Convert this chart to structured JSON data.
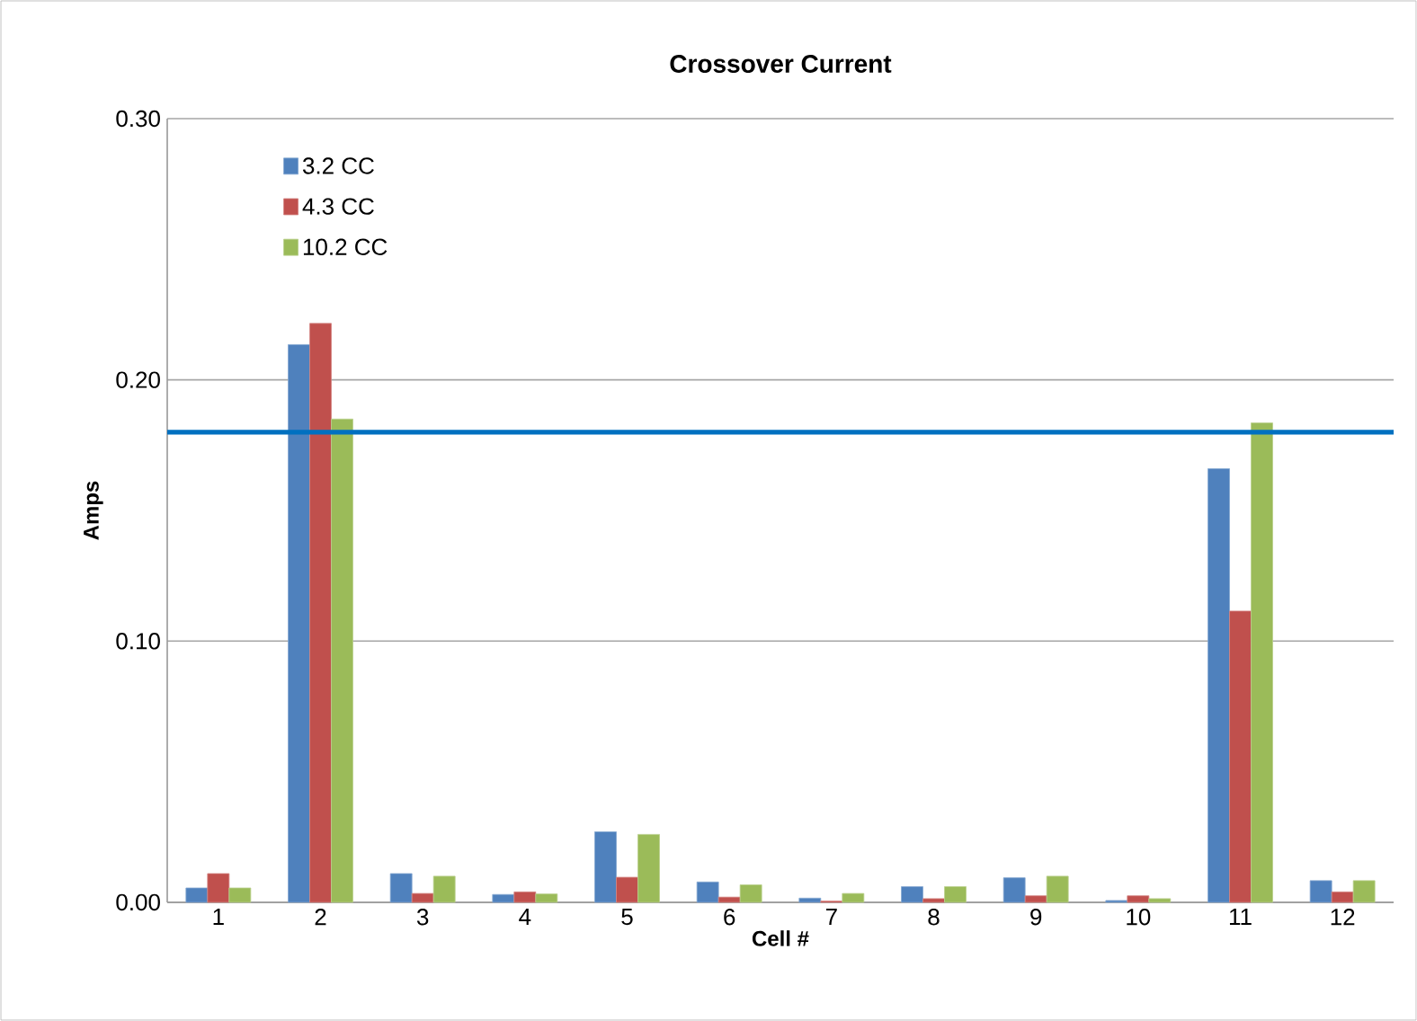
{
  "chart_data": {
    "type": "bar",
    "title": "Crossover Current",
    "xlabel": "Cell #",
    "ylabel": "Amps",
    "categories": [
      "1",
      "2",
      "3",
      "4",
      "5",
      "6",
      "7",
      "8",
      "9",
      "10",
      "11",
      "12"
    ],
    "series": [
      {
        "name": "3.2 CC",
        "color": "#4f81bd",
        "values": [
          0.0055,
          0.2135,
          0.011,
          0.003,
          0.027,
          0.0078,
          0.0016,
          0.006,
          0.0094,
          0.0007,
          0.166,
          0.0083
        ]
      },
      {
        "name": "4.3 CC",
        "color": "#c0504d",
        "values": [
          0.011,
          0.2216,
          0.0034,
          0.004,
          0.0096,
          0.002,
          0.0005,
          0.0014,
          0.0025,
          0.0025,
          0.1115,
          0.004
        ]
      },
      {
        "name": "10.2 CC",
        "color": "#9bbb59",
        "values": [
          0.0055,
          0.185,
          0.01,
          0.0032,
          0.026,
          0.0067,
          0.0034,
          0.006,
          0.01,
          0.0014,
          0.1835,
          0.0083
        ]
      }
    ],
    "ylim": [
      0,
      0.3
    ],
    "yticks": [
      {
        "value": 0,
        "label": "0.00"
      },
      {
        "value": 0.1,
        "label": "0.10"
      },
      {
        "value": 0.2,
        "label": "0.20"
      },
      {
        "value": 0.3,
        "label": "0.30"
      }
    ],
    "ref_lines": [
      {
        "axis": "y",
        "value": 0.18,
        "color": "#0070c0"
      }
    ],
    "grid": "y",
    "legend": "top left"
  }
}
